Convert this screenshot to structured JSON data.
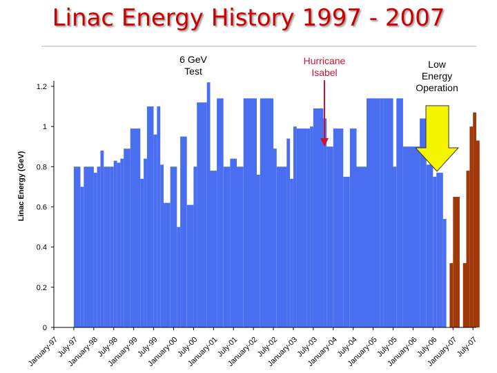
{
  "page": {
    "title": "Linac Energy History 1997 - 2007"
  },
  "annotations": {
    "six_gev": "6 GeV\nTest",
    "hurricane": "Hurricane\nIsabel",
    "low_energy": "Low\nEnergy\nOperation"
  },
  "colors": {
    "title": "#cc0000",
    "blue_series": "#4a6ef0",
    "brown_series": "#a0380a",
    "hurricane": "#cc1133",
    "arrow": "#f5f500"
  },
  "chart_data": {
    "type": "bar",
    "title": "Linac Energy History 1997 - 2007",
    "xlabel": "",
    "ylabel": "Linac Energy (GeV)",
    "ylim": [
      0,
      1.2
    ],
    "yticks": [
      0,
      0.2,
      0.4,
      0.6,
      0.8,
      1,
      1.2
    ],
    "ytick_labels": [
      "0",
      "0.2",
      "0.4",
      "0.6",
      "0.8",
      "1",
      "1.2"
    ],
    "x_start": "January-97",
    "x_end": "July-07",
    "xtick_labels": [
      "January-97",
      "July-97",
      "January-98",
      "July-98",
      "January-99",
      "July-99",
      "January-00",
      "July-00",
      "January-01",
      "July-01",
      "January-02",
      "July-02",
      "January-03",
      "July-03",
      "January-04",
      "July-04",
      "January-05",
      "July-05",
      "January-06",
      "July-06",
      "January-07",
      "July-07"
    ],
    "grid": false,
    "legend": "none",
    "series": [
      {
        "color": "#4a6ef0",
        "bars": [
          [
            "1997-07",
            "1997-09",
            0.8
          ],
          [
            "1997-09",
            "1997-10",
            0.7
          ],
          [
            "1997-10",
            "1998-01",
            0.8
          ],
          [
            "1998-01",
            "1998-02",
            0.77
          ],
          [
            "1998-02",
            "1998-03",
            0.8
          ],
          [
            "1998-03",
            "1998-04",
            0.88
          ],
          [
            "1998-04",
            "1998-06",
            0.8
          ],
          [
            "1998-06",
            "1998-07",
            0.8
          ],
          [
            "1998-07",
            "1998-08",
            0.83
          ],
          [
            "1998-08",
            "1998-09",
            0.82
          ],
          [
            "1998-09",
            "1998-10",
            0.84
          ],
          [
            "1998-10",
            "1998-12",
            0.89
          ],
          [
            "1998-12",
            "1999-03",
            0.99
          ],
          [
            "1999-03",
            "1999-04",
            0.74
          ],
          [
            "1999-04",
            "1999-05",
            0.84
          ],
          [
            "1999-05",
            "1999-07",
            1.1
          ],
          [
            "1999-07",
            "1999-08",
            0.96
          ],
          [
            "1999-08",
            "1999-09",
            1.1
          ],
          [
            "1999-09",
            "1999-10",
            0.81
          ],
          [
            "1999-10",
            "1999-12",
            0.62
          ],
          [
            "1999-12",
            "2000-02",
            0.8
          ],
          [
            "2000-02",
            "2000-03",
            0.5
          ],
          [
            "2000-03",
            "2000-05",
            0.95
          ],
          [
            "2000-05",
            "2000-07",
            0.61
          ],
          [
            "2000-07",
            "2000-08",
            0.8
          ],
          [
            "2000-08",
            "2000-11",
            1.12
          ],
          [
            "2000-11",
            "2000-12",
            1.22
          ],
          [
            "2000-12",
            "2001-02",
            0.78
          ],
          [
            "2001-02",
            "2001-04",
            1.14
          ],
          [
            "2001-04",
            "2001-06",
            0.8
          ],
          [
            "2001-06",
            "2001-08",
            0.84
          ],
          [
            "2001-08",
            "2001-10",
            0.8
          ],
          [
            "2001-10",
            "2002-02",
            1.14
          ],
          [
            "2002-02",
            "2002-03",
            0.76
          ],
          [
            "2002-03",
            "2002-07",
            1.14
          ],
          [
            "2002-07",
            "2002-08",
            0.89
          ],
          [
            "2002-08",
            "2002-11",
            0.8
          ],
          [
            "2002-11",
            "2002-12",
            0.94
          ],
          [
            "2002-12",
            "2003-01",
            0.74
          ],
          [
            "2003-01",
            "2003-02",
            1.0
          ],
          [
            "2003-02",
            "2003-05",
            0.99
          ],
          [
            "2003-05",
            "2003-06",
            0.99
          ],
          [
            "2003-06",
            "2003-07",
            1.0
          ],
          [
            "2003-07",
            "2003-10",
            1.09
          ],
          [
            "2003-10",
            "2003-11",
            1.04
          ],
          [
            "2003-11",
            "2004-01",
            0.9
          ],
          [
            "2004-01",
            "2004-04",
            0.99
          ],
          [
            "2004-04",
            "2004-06",
            0.75
          ],
          [
            "2004-06",
            "2004-08",
            0.99
          ],
          [
            "2004-08",
            "2004-11",
            0.8
          ],
          [
            "2004-11",
            "2005-03",
            1.14
          ],
          [
            "2005-03",
            "2005-04",
            1.14
          ],
          [
            "2005-04",
            "2005-07",
            1.14
          ],
          [
            "2005-07",
            "2005-08",
            0.8
          ],
          [
            "2005-08",
            "2005-10",
            1.14
          ],
          [
            "2005-10",
            "2006-03",
            0.9
          ],
          [
            "2006-03",
            "2006-05",
            1.04
          ],
          [
            "2006-05",
            "2006-06",
            0.81
          ],
          [
            "2006-06",
            "2006-07",
            0.92
          ],
          [
            "2006-07",
            "2006-08",
            0.75
          ],
          [
            "2006-08",
            "2006-10",
            0.77
          ],
          [
            "2006-10",
            "2006-11",
            0.54
          ]
        ]
      },
      {
        "color": "#a0380a",
        "bars": [
          [
            "2006-12",
            "2007-01",
            0.32
          ],
          [
            "2007-01",
            "2007-03",
            0.65
          ],
          [
            "2007-04",
            "2007-05",
            0.32
          ],
          [
            "2007-05",
            "2007-06",
            0.78
          ],
          [
            "2007-06",
            "2007-07",
            1.0
          ],
          [
            "2007-07",
            "2007-08",
            1.07
          ],
          [
            "2007-08",
            "2007-09",
            0.93
          ]
        ]
      }
    ]
  }
}
